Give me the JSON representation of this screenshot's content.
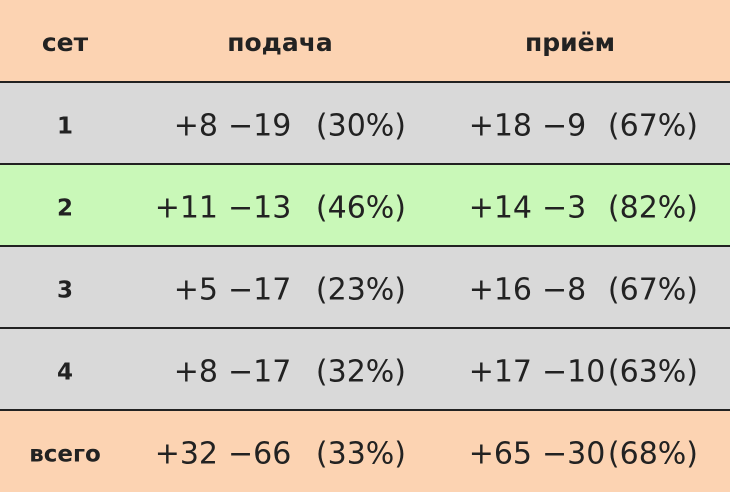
{
  "table": {
    "header": [
      "сет",
      "подача",
      "приём"
    ],
    "rows": [
      {
        "set": "1",
        "serve": [
          "+8",
          "−19",
          "(30%)"
        ],
        "receive": [
          "+18",
          "−9",
          "(67%)"
        ]
      },
      {
        "set": "2",
        "serve": [
          "+11",
          "−13",
          "(46%)"
        ],
        "receive": [
          "+14",
          "−3",
          "(82%)"
        ]
      },
      {
        "set": "3",
        "serve": [
          "+5",
          "−17",
          "(23%)"
        ],
        "receive": [
          "+16",
          "−8",
          "(67%)"
        ]
      },
      {
        "set": "4",
        "serve": [
          "+8",
          "−17",
          "(32%)"
        ],
        "receive": [
          "+17",
          "−10",
          "(63%)"
        ]
      },
      {
        "set": "всего",
        "serve": [
          "+32",
          "−66",
          "(33%)"
        ],
        "receive": [
          "+65",
          "−30",
          "(68%)"
        ]
      }
    ]
  }
}
